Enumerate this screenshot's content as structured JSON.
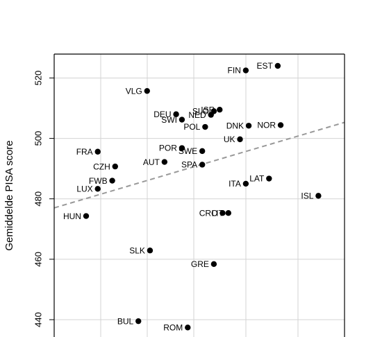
{
  "chart_data": {
    "type": "scatter",
    "ylabel": "Gemiddelde PISA score",
    "ylim": [
      432,
      540
    ],
    "xlim": [
      0,
      1
    ],
    "y_ticks": [
      440,
      460,
      480,
      500,
      520
    ],
    "grid": true,
    "trend_line": {
      "style": "dashed",
      "color": "#999999",
      "y_at_xmin": 477.0,
      "y_at_xmax": 505.3
    },
    "points": [
      {
        "label": "EST",
        "x": 0.77,
        "y": 524.0
      },
      {
        "label": "FIN",
        "x": 0.66,
        "y": 522.5
      },
      {
        "label": "VLG",
        "x": 0.32,
        "y": 515.7
      },
      {
        "label": "ISR",
        "x": 0.57,
        "y": 509.5
      },
      {
        "label": "SLO",
        "x": 0.55,
        "y": 509.0
      },
      {
        "label": "DEU",
        "x": 0.42,
        "y": 508.0
      },
      {
        "label": "NED",
        "x": 0.54,
        "y": 507.8
      },
      {
        "label": "SWI",
        "x": 0.44,
        "y": 506.2
      },
      {
        "label": "POL",
        "x": 0.52,
        "y": 503.8
      },
      {
        "label": "DNK",
        "x": 0.67,
        "y": 504.2
      },
      {
        "label": "NOR",
        "x": 0.78,
        "y": 504.4
      },
      {
        "label": "UK",
        "x": 0.64,
        "y": 499.7
      },
      {
        "label": "POR",
        "x": 0.44,
        "y": 496.8
      },
      {
        "label": "SWE",
        "x": 0.51,
        "y": 495.8
      },
      {
        "label": "FRA",
        "x": 0.15,
        "y": 495.6
      },
      {
        "label": "AUT",
        "x": 0.38,
        "y": 492.2
      },
      {
        "label": "SPA",
        "x": 0.51,
        "y": 491.3
      },
      {
        "label": "CZH",
        "x": 0.21,
        "y": 490.7
      },
      {
        "label": "LAT",
        "x": 0.74,
        "y": 486.7
      },
      {
        "label": "FWB",
        "x": 0.2,
        "y": 486.0
      },
      {
        "label": "ITA",
        "x": 0.66,
        "y": 485.0
      },
      {
        "label": "LUX",
        "x": 0.15,
        "y": 483.3
      },
      {
        "label": "ISL",
        "x": 0.91,
        "y": 481.0
      },
      {
        "label": "HUN",
        "x": 0.11,
        "y": 474.3
      },
      {
        "label": "CRO",
        "x": 0.58,
        "y": 475.3
      },
      {
        "label": "LIT",
        "x": 0.6,
        "y": 475.3
      },
      {
        "label": "SLK",
        "x": 0.33,
        "y": 462.9
      },
      {
        "label": "GRE",
        "x": 0.55,
        "y": 458.4
      },
      {
        "label": "BUL",
        "x": 0.29,
        "y": 439.5
      },
      {
        "label": "ROM",
        "x": 0.46,
        "y": 437.4
      }
    ]
  }
}
